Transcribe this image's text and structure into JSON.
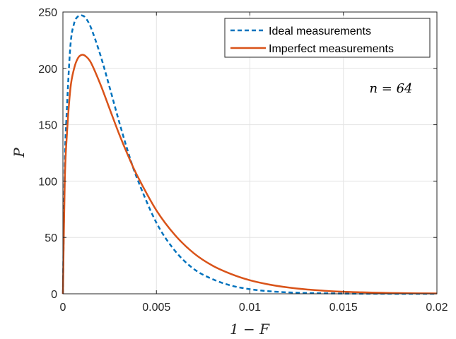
{
  "chart_data": {
    "type": "line",
    "xlabel": "1 − F",
    "ylabel": "P",
    "xlim": [
      0,
      0.02
    ],
    "ylim": [
      0,
      250
    ],
    "xticks": [
      0,
      0.005,
      0.01,
      0.015,
      0.02
    ],
    "xtick_labels": [
      "0",
      "0.005",
      "0.01",
      "0.015",
      "0.02"
    ],
    "yticks": [
      0,
      50,
      100,
      150,
      200,
      250
    ],
    "ytick_labels": [
      "0",
      "50",
      "100",
      "150",
      "200",
      "250"
    ],
    "grid": true,
    "legend_position": "top-right",
    "annotation": "n = 64",
    "series": [
      {
        "name": "Ideal measurements",
        "color": "#0072BD",
        "line_style": "dashed",
        "x": [
          0,
          0.0001,
          0.0002,
          0.0004,
          0.0006,
          0.0008,
          0.001,
          0.0012,
          0.0015,
          0.002,
          0.0025,
          0.003,
          0.0035,
          0.004,
          0.005,
          0.006,
          0.007,
          0.008,
          0.009,
          0.01,
          0.011,
          0.012,
          0.013,
          0.014,
          0.015,
          0.016,
          0.017,
          0.018,
          0.019,
          0.02
        ],
        "y": [
          0,
          115,
          160,
          220,
          240,
          246,
          247,
          245,
          236,
          212,
          183,
          153,
          125,
          101,
          63,
          38,
          22,
          13,
          7.3,
          4.1,
          2.3,
          1.3,
          0.7,
          0.4,
          0.2,
          0.1,
          0.06,
          0.03,
          0.02,
          0.01
        ]
      },
      {
        "name": "Imperfect measurements",
        "color": "#D95319",
        "line_style": "solid",
        "x": [
          0,
          0.0001,
          0.0002,
          0.0004,
          0.0006,
          0.0008,
          0.001,
          0.0012,
          0.0015,
          0.002,
          0.0025,
          0.003,
          0.0035,
          0.004,
          0.005,
          0.006,
          0.007,
          0.008,
          0.009,
          0.01,
          0.011,
          0.012,
          0.013,
          0.014,
          0.015,
          0.016,
          0.017,
          0.018,
          0.019,
          0.02
        ],
        "y": [
          0,
          100,
          138,
          182,
          200,
          209,
          212,
          211,
          205,
          186,
          164,
          142,
          122,
          104,
          74,
          52,
          36,
          25,
          17.5,
          12,
          8.3,
          5.7,
          3.9,
          2.7,
          1.8,
          1.3,
          0.9,
          0.6,
          0.4,
          0.3
        ]
      }
    ]
  }
}
